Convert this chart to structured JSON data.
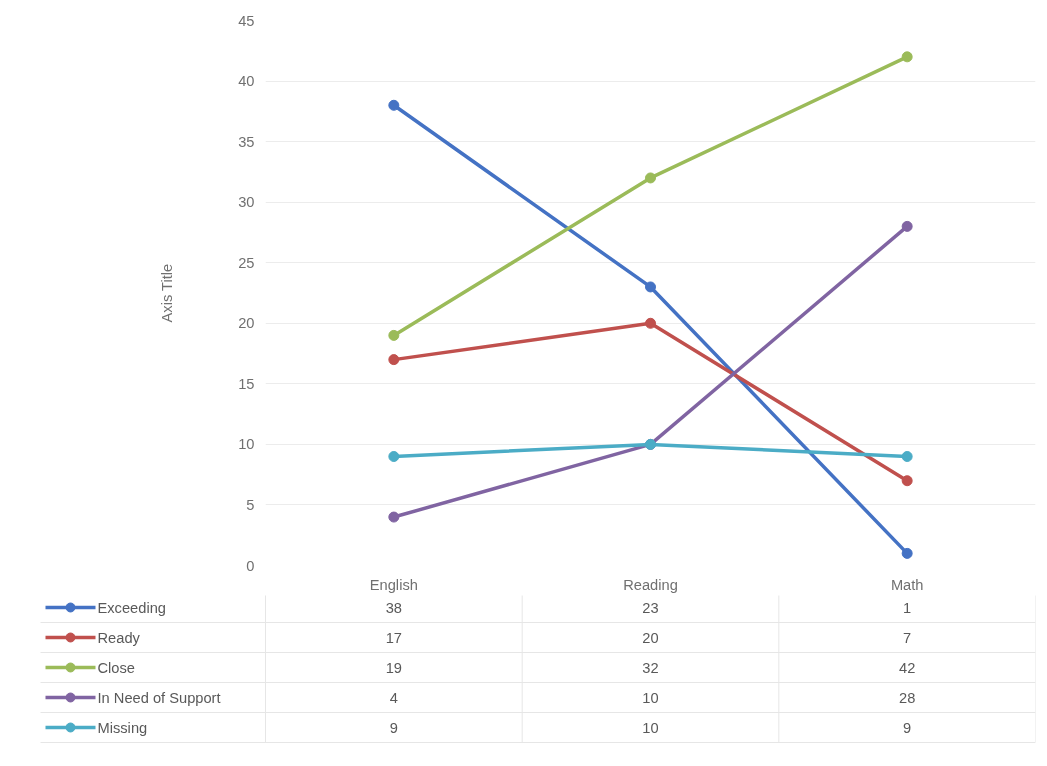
{
  "chart_data": {
    "type": "line",
    "ylabel": "Axis Title",
    "categories": [
      "English",
      "Reading",
      "Math"
    ],
    "ylim": [
      0,
      45
    ],
    "yticks": [
      0,
      5,
      10,
      15,
      20,
      25,
      30,
      35,
      40,
      45
    ],
    "grid": "y",
    "legend": "bottom",
    "marker": "circle",
    "line_style": "solid",
    "data_labels": true,
    "series": [
      {
        "name": "Exceeding",
        "color": "#4472c4",
        "values": [
          38,
          23,
          1
        ]
      },
      {
        "name": "Ready",
        "color": "#c0504d",
        "values": [
          17,
          20,
          7
        ]
      },
      {
        "name": "Close",
        "color": "#9bbb59",
        "values": [
          19,
          32,
          42
        ]
      },
      {
        "name": "In Need of Support",
        "color": "#8064a2",
        "values": [
          4,
          10,
          28
        ]
      },
      {
        "name": "Missing",
        "color": "#4bacc6",
        "values": [
          9,
          10,
          9
        ]
      }
    ]
  }
}
